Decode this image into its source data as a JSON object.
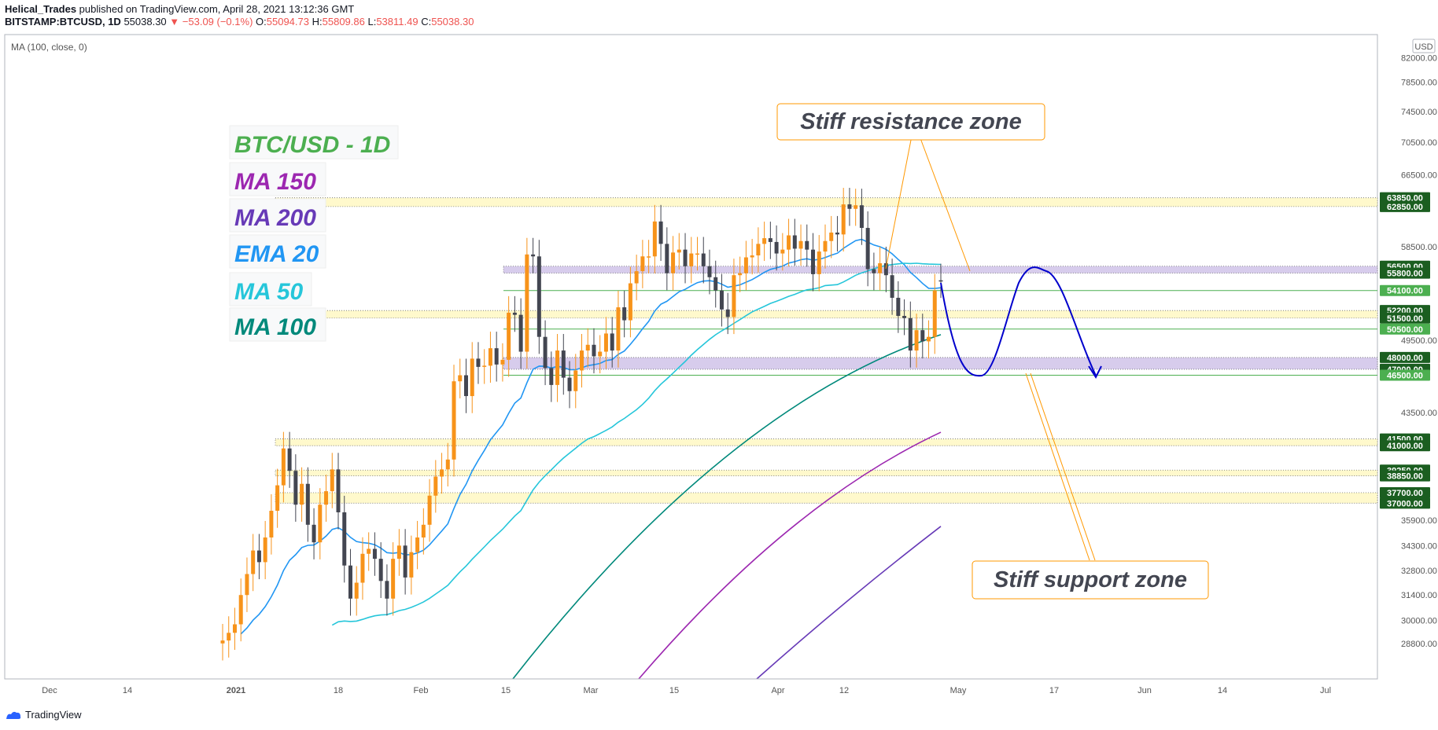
{
  "header": {
    "author": "Helical_Trades",
    "published": " published on TradingView.com, April 28, 2021 13:12:36 GMT",
    "symbol": "BITSTAMP:BTCUSD, 1D",
    "last": "55038.30",
    "change": "▼ −53.09 (−0.1%)",
    "o_label": "O:",
    "o": "55094.73",
    "h_label": "H:",
    "h": "55809.86",
    "l_label": "L:",
    "l": "53811.49",
    "c_label": "C:",
    "c": "55038.30"
  },
  "indicator_label": "MA (100, close, 0)",
  "currency": "USD",
  "legend": [
    {
      "text": "BTC/USD - 1D",
      "color": "#4caf50"
    },
    {
      "text": "MA 150",
      "color": "#9c27b0"
    },
    {
      "text": "MA 200",
      "color": "#673ab7"
    },
    {
      "text": "EMA 20",
      "color": "#2196f3"
    },
    {
      "text": "MA 50",
      "color": "#26c6da"
    },
    {
      "text": "MA 100",
      "color": "#00897b"
    }
  ],
  "annotations": {
    "resistance": "Stiff resistance zone",
    "support": "Stiff support zone"
  },
  "footer": {
    "brand": "TradingView"
  },
  "colors": {
    "up": "#f7931a",
    "down": "#434651",
    "ema20": "#2196f3",
    "ma50": "#26c6da",
    "ma100": "#00897b",
    "ma150": "#9c27b0",
    "ma200": "#673ab7",
    "projection": "#0000cc",
    "zone_yellow": "#fff9c4",
    "zone_purple": "#d1c4e9",
    "badge_dark": "#1b5e20",
    "badge_light": "#4caf50",
    "callout": "#ff9800"
  },
  "chart_data": {
    "type": "candlestick",
    "y_scale": "log",
    "ylim": [
      28000,
      82000
    ],
    "x_ticks": [
      "Dec",
      "14",
      "2021",
      "18",
      "Feb",
      "15",
      "Mar",
      "15",
      "Apr",
      "12",
      "May",
      "17",
      "Jun",
      "14",
      "Jul"
    ],
    "y_ticks": [
      "82000.00",
      "78500.00",
      "74500.00",
      "70500.00",
      "66500.00",
      "58500.00",
      "49500.00",
      "43500.00",
      "35900.00",
      "34300.00",
      "32800.00",
      "31400.00",
      "30000.00",
      "28800.00"
    ],
    "level_badges": [
      {
        "label": "63850.00",
        "value": 63850,
        "tone": "dark"
      },
      {
        "label": "62850.00",
        "value": 62850,
        "tone": "dark"
      },
      {
        "label": "56500.00",
        "value": 56500,
        "tone": "dark"
      },
      {
        "label": "55800.00",
        "value": 55800,
        "tone": "dark"
      },
      {
        "label": "54100.00",
        "value": 54100,
        "tone": "light"
      },
      {
        "label": "52200.00",
        "value": 52200,
        "tone": "dark"
      },
      {
        "label": "51500.00",
        "value": 51500,
        "tone": "dark"
      },
      {
        "label": "50500.00",
        "value": 50500,
        "tone": "light"
      },
      {
        "label": "48000.00",
        "value": 48000,
        "tone": "dark"
      },
      {
        "label": "47000.00",
        "value": 47000,
        "tone": "dark"
      },
      {
        "label": "46500.00",
        "value": 46500,
        "tone": "light"
      },
      {
        "label": "41500.00",
        "value": 41500,
        "tone": "dark"
      },
      {
        "label": "41000.00",
        "value": 41000,
        "tone": "dark"
      },
      {
        "label": "39250.00",
        "value": 39250,
        "tone": "dark"
      },
      {
        "label": "38850.00",
        "value": 38850,
        "tone": "dark"
      },
      {
        "label": "37700.00",
        "value": 37700,
        "tone": "dark"
      },
      {
        "label": "37000.00",
        "value": 37000,
        "tone": "dark"
      }
    ],
    "zones": [
      {
        "low": 62850,
        "high": 63850,
        "color": "yellow"
      },
      {
        "low": 55800,
        "high": 56500,
        "color": "purple"
      },
      {
        "low": 51500,
        "high": 52200,
        "color": "yellow"
      },
      {
        "low": 47000,
        "high": 48000,
        "color": "purple"
      },
      {
        "low": 41000,
        "high": 41500,
        "color": "yellow"
      },
      {
        "low": 38850,
        "high": 39250,
        "color": "yellow"
      },
      {
        "low": 37000,
        "high": 37700,
        "color": "yellow"
      }
    ],
    "lines": [
      54100,
      50500,
      46500
    ],
    "candles_close": [
      28950,
      29350,
      29800,
      31400,
      32600,
      34000,
      33300,
      34800,
      36500,
      38200,
      40800,
      39200,
      36900,
      38300,
      35600,
      34500,
      36900,
      37800,
      39300,
      36400,
      33100,
      31200,
      32100,
      33800,
      34100,
      33500,
      32200,
      31200,
      33500,
      34300,
      32400,
      33900,
      34800,
      35600,
      37500,
      38800,
      39300,
      40000,
      46000,
      46500,
      44800,
      47900,
      47200,
      47300,
      48800,
      47400,
      47800,
      52000,
      51800,
      48500,
      57700,
      57500,
      49800,
      47100,
      45700,
      48600,
      46300,
      45200,
      46900,
      48600,
      49100,
      48100,
      48500,
      50100,
      48600,
      52500,
      51300,
      54800,
      56000,
      57500,
      57500,
      61200,
      58800,
      55800,
      57900,
      58200,
      56500,
      57800,
      57800,
      56500,
      55400,
      54100,
      52300,
      51600,
      55600,
      55800,
      57400,
      57600,
      58800,
      59400,
      59000,
      57800,
      58200,
      59700,
      58300,
      59100,
      58200,
      55700,
      58000,
      59100,
      60000,
      59800,
      63100,
      62600,
      63000,
      60500,
      56200,
      55800,
      56800,
      55600,
      53400,
      51700,
      51500,
      48600,
      50400,
      49400,
      49800,
      54100,
      55038
    ],
    "candles_open": [
      28800,
      28950,
      29350,
      29800,
      31400,
      32600,
      34000,
      33300,
      34800,
      36500,
      38200,
      40800,
      39200,
      36900,
      38300,
      35600,
      34500,
      36900,
      37800,
      39300,
      36400,
      33100,
      31200,
      32100,
      33800,
      34100,
      33500,
      32200,
      31200,
      33500,
      34300,
      32400,
      33900,
      34800,
      35600,
      37500,
      38800,
      39300,
      40000,
      46000,
      46500,
      44800,
      47900,
      47200,
      47300,
      48800,
      47400,
      47800,
      52000,
      51800,
      48500,
      57700,
      57500,
      49800,
      47100,
      45700,
      48600,
      46300,
      45200,
      46900,
      48600,
      49100,
      48100,
      48500,
      50100,
      48600,
      52500,
      51300,
      54800,
      56000,
      57500,
      57500,
      61200,
      58800,
      55800,
      57900,
      58200,
      56500,
      57800,
      57800,
      56500,
      55400,
      54100,
      52300,
      51600,
      55600,
      55800,
      57400,
      57600,
      58800,
      59400,
      59000,
      57800,
      58200,
      59700,
      58300,
      59100,
      58200,
      55700,
      58000,
      59100,
      60000,
      59800,
      63100,
      62600,
      63000,
      60500,
      56200,
      55800,
      56800,
      55600,
      53400,
      51700,
      51500,
      48600,
      50400,
      49400,
      49800,
      55094
    ]
  }
}
